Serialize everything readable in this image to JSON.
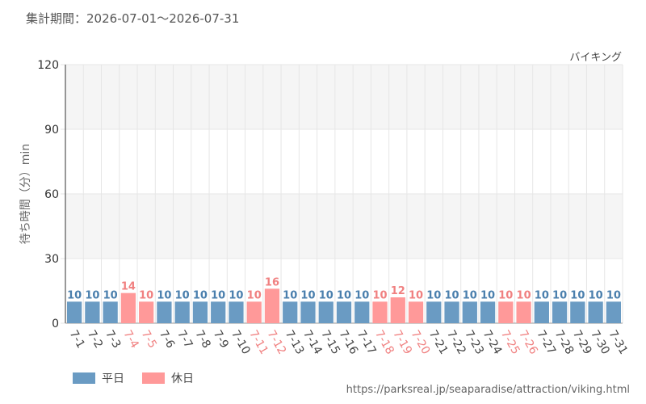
{
  "header": {
    "period_label": "集計期間：",
    "period_start": "2026-07-01",
    "period_sep": "～",
    "period_end": "2026-07-31"
  },
  "series_name": "バイキング",
  "source_url": "https://parksreal.jp/seaparadise/attraction/viking.html",
  "legend": [
    {
      "label": "平日",
      "color": "#6a9bc3"
    },
    {
      "label": "休日",
      "color": "#ff9999"
    }
  ],
  "colors": {
    "weekday_bar": "#6a9bc3",
    "holiday_bar": "#ff9999",
    "weekday_text": "#4a7fad",
    "holiday_text": "#f08080",
    "grid": "#e6e6e6",
    "band": "#f5f5f5"
  },
  "chart_data": {
    "type": "bar",
    "title": "",
    "xlabel": "",
    "ylabel": "待ち時間（分）min",
    "ylim": [
      0,
      120
    ],
    "yticks": [
      0,
      30,
      60,
      90,
      120
    ],
    "grid": true,
    "legend_position": "bottom-left",
    "categories": [
      "7-1",
      "7-2",
      "7-3",
      "7-4",
      "7-5",
      "7-6",
      "7-7",
      "7-8",
      "7-9",
      "7-10",
      "7-11",
      "7-12",
      "7-13",
      "7-14",
      "7-15",
      "7-16",
      "7-17",
      "7-18",
      "7-19",
      "7-20",
      "7-21",
      "7-22",
      "7-23",
      "7-24",
      "7-25",
      "7-26",
      "7-27",
      "7-28",
      "7-29",
      "7-30",
      "7-31"
    ],
    "values": [
      10,
      10,
      10,
      14,
      10,
      10,
      10,
      10,
      10,
      10,
      10,
      16,
      10,
      10,
      10,
      10,
      10,
      10,
      12,
      10,
      10,
      10,
      10,
      10,
      10,
      10,
      10,
      10,
      10,
      10,
      10
    ],
    "day_type": [
      "平日",
      "平日",
      "平日",
      "休日",
      "休日",
      "平日",
      "平日",
      "平日",
      "平日",
      "平日",
      "休日",
      "休日",
      "平日",
      "平日",
      "平日",
      "平日",
      "平日",
      "休日",
      "休日",
      "休日",
      "平日",
      "平日",
      "平日",
      "平日",
      "休日",
      "休日",
      "平日",
      "平日",
      "平日",
      "平日",
      "平日"
    ]
  }
}
